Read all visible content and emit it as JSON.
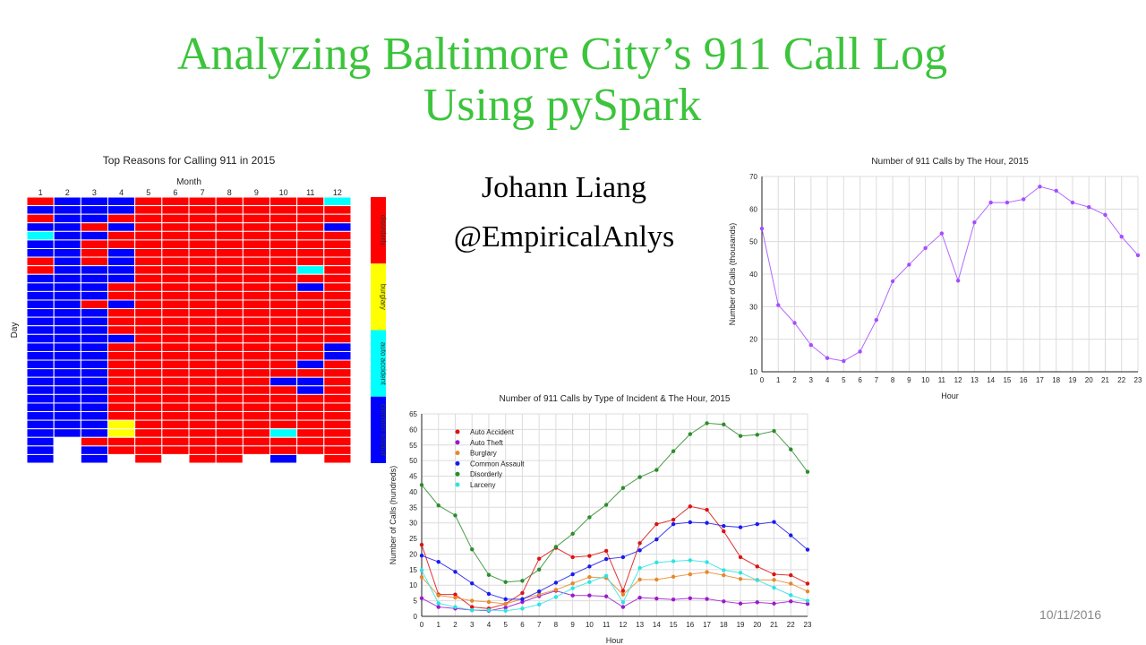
{
  "slide": {
    "title_line1": "Analyzing Baltimore City’s 911 Call Log",
    "title_line2": "Using pySpark",
    "author_name": "Johann Liang",
    "author_handle": "@EmpiricalAnlys",
    "date": "10/11/2016",
    "colors": {
      "title": "#3cc43c"
    }
  },
  "chart_data": [
    {
      "type": "heatmap",
      "title": "Top Reasons for Calling 911 in 2015",
      "xlabel": "Month",
      "ylabel": "Day",
      "x_ticks": [
        "1",
        "2",
        "3",
        "4",
        "5",
        "6",
        "7",
        "8",
        "9",
        "10",
        "11",
        "12"
      ],
      "days": 31,
      "legend": [
        "disorderly",
        "burglary",
        "auto accident",
        "common assault"
      ],
      "legend_colors": {
        "disorderly": "#ff0000",
        "burglary": "#ffff00",
        "auto accident": "#00ffff",
        "common assault": "#0000ff",
        "none": "#ffffff"
      },
      "cell_codes": {
        "D": "disorderly",
        "B": "burglary",
        "A": "auto accident",
        "C": "common assault",
        "_": "none"
      },
      "rows": [
        "DCCCDDDDDDDA",
        "CCCCDDDDDDDD",
        "DCCDDDDDDDDD",
        "CCDCDDDDDDDC",
        "ACCDDDDDDDDD",
        "CCDDDDDDDDDD",
        "CCDCDDDDDDDD",
        "DCDCDDDDDDDD",
        "DCCCDDDDDDAD",
        "CCCCDDDDDDDD",
        "CCCDDDDDDDCD",
        "CCCDDDDDDDDD",
        "CCDCDDDDDDDD",
        "CCCDDDDDDDDD",
        "CCCDDDDDDDDD",
        "CCCDDDDDDDDD",
        "CCCCDDDDDDDD",
        "CCCDDDDDDDDC",
        "CCCDDDDDDDDC",
        "CCCDDDDDDDCD",
        "CCCDDDDDDDDD",
        "CCCDDDDDDCCD",
        "CCCDDDDDDDCD",
        "CCCDDDDDDDDD",
        "CCCDDDDDDDDD",
        "CCCDDDDDDDDD",
        "CCCBDDDDDDDD",
        "CCCBDDDDDADD",
        "C_DDDDDDDDDD",
        "C_CDDDDDDDDD",
        "C_C_D_DD_C_D"
      ]
    },
    {
      "type": "line",
      "title": "Number of 911 Calls by The Hour, 2015",
      "xlabel": "Hour",
      "ylabel": "Number of Calls (thousands)",
      "x": [
        0,
        1,
        2,
        3,
        4,
        5,
        6,
        7,
        8,
        9,
        10,
        11,
        12,
        13,
        14,
        15,
        16,
        17,
        18,
        19,
        20,
        21,
        22,
        23
      ],
      "ylim": [
        10,
        70
      ],
      "y_ticks": [
        10,
        20,
        30,
        40,
        50,
        60,
        70
      ],
      "series": [
        {
          "values": [
            54,
            30.5,
            25,
            18.2,
            14.2,
            13.3,
            16.2,
            25.9,
            37.8,
            42.9,
            48,
            52.5,
            38,
            55.9,
            62,
            62,
            63,
            66.9,
            65.6,
            62,
            60.6,
            58.2,
            51.5,
            45.8
          ],
          "color": "#a64dff"
        }
      ],
      "grid": true
    },
    {
      "type": "line",
      "title": "Number of 911 Calls by Type of Incident & The Hour, 2015",
      "xlabel": "Hour",
      "ylabel": "Number of Calls (hundreds)",
      "x": [
        0,
        1,
        2,
        3,
        4,
        5,
        6,
        7,
        8,
        9,
        10,
        11,
        12,
        13,
        14,
        15,
        16,
        17,
        18,
        19,
        20,
        21,
        22,
        23
      ],
      "ylim": [
        0,
        65
      ],
      "y_ticks": [
        0,
        5,
        10,
        15,
        20,
        25,
        30,
        35,
        40,
        45,
        50,
        55,
        60,
        65
      ],
      "legend_position": "top-left",
      "grid": true,
      "series": [
        {
          "name": "Auto Accident",
          "color": "#dd1111",
          "values": [
            23,
            7,
            7,
            3,
            2.5,
            4,
            7.5,
            18.5,
            22,
            19,
            19.4,
            21,
            8.2,
            23.5,
            29.6,
            31,
            35.3,
            34.2,
            27.3,
            19,
            16,
            13.5,
            13.2,
            10.5
          ]
        },
        {
          "name": "Auto Theft",
          "color": "#9b19cc",
          "values": [
            5.8,
            3,
            2.5,
            2,
            1.8,
            2.8,
            4.6,
            6.5,
            8.2,
            6.7,
            6.7,
            6.4,
            3,
            6,
            5.7,
            5.4,
            5.8,
            5.6,
            4.8,
            4.1,
            4.5,
            4.1,
            4.8,
            4
          ]
        },
        {
          "name": "Burglary",
          "color": "#e6882a",
          "values": [
            12.6,
            6.7,
            6,
            5,
            4.6,
            4,
            5.6,
            7,
            8.5,
            10.6,
            12.6,
            12.3,
            7,
            11.8,
            11.8,
            12.7,
            13.5,
            14.2,
            13.2,
            12,
            11.7,
            11.7,
            10.5,
            8
          ]
        },
        {
          "name": "Common Assault",
          "color": "#1a1aee",
          "values": [
            19.5,
            17.5,
            14.3,
            10.6,
            7.2,
            5.5,
            5.5,
            8,
            10.8,
            13.5,
            16,
            18.4,
            19,
            21.2,
            24.7,
            29.6,
            30.2,
            30,
            29,
            28.6,
            29.6,
            30.3,
            26,
            21.4
          ]
        },
        {
          "name": "Disorderly",
          "color": "#2b8c2b",
          "values": [
            42.2,
            35.6,
            32.4,
            21.5,
            13.3,
            11,
            11.4,
            15,
            22.3,
            26.5,
            31.8,
            35.8,
            41.2,
            44.7,
            47,
            53,
            58.5,
            62,
            61.6,
            57.9,
            58.3,
            59.5,
            53.6,
            46.4
          ]
        },
        {
          "name": "Larceny",
          "color": "#2de3e3",
          "values": [
            14.8,
            4.2,
            3,
            2,
            2,
            1.8,
            2.5,
            3.8,
            6.2,
            9,
            11,
            13,
            4.5,
            15.5,
            17.3,
            17.7,
            18,
            17.4,
            14.8,
            14,
            11.6,
            9.2,
            6.8,
            5
          ]
        }
      ]
    }
  ]
}
